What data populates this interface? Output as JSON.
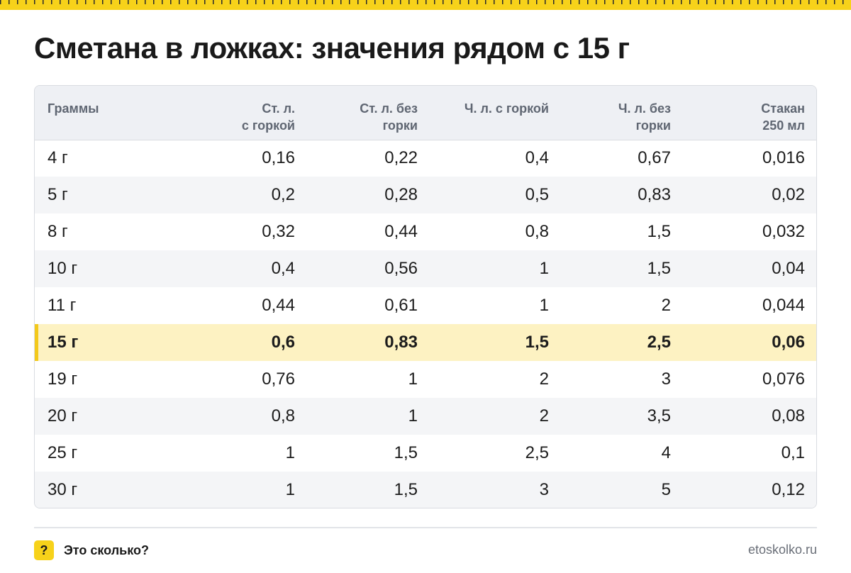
{
  "title": "Сметана в ложках: значения рядом с 15 г",
  "table": {
    "headers": [
      [
        "Граммы"
      ],
      [
        "Ст. л.",
        "с горкой"
      ],
      [
        "Ст. л. без",
        "горки"
      ],
      [
        "Ч. л. с горкой"
      ],
      [
        "Ч. л. без",
        "горки"
      ],
      [
        "Стакан",
        "250 мл"
      ]
    ],
    "highlight_row": 5,
    "rows": [
      [
        "4 г",
        "0,16",
        "0,22",
        "0,4",
        "0,67",
        "0,016"
      ],
      [
        "5 г",
        "0,2",
        "0,28",
        "0,5",
        "0,83",
        "0,02"
      ],
      [
        "8 г",
        "0,32",
        "0,44",
        "0,8",
        "1,5",
        "0,032"
      ],
      [
        "10 г",
        "0,4",
        "0,56",
        "1",
        "1,5",
        "0,04"
      ],
      [
        "11 г",
        "0,44",
        "0,61",
        "1",
        "2",
        "0,044"
      ],
      [
        "15 г",
        "0,6",
        "0,83",
        "1,5",
        "2,5",
        "0,06"
      ],
      [
        "19 г",
        "0,76",
        "1",
        "2",
        "3",
        "0,076"
      ],
      [
        "20 г",
        "0,8",
        "1",
        "2",
        "3,5",
        "0,08"
      ],
      [
        "25 г",
        "1",
        "1,5",
        "2,5",
        "4",
        "0,1"
      ],
      [
        "30 г",
        "1",
        "1,5",
        "3",
        "5",
        "0,12"
      ]
    ]
  },
  "footer": {
    "badge": "?",
    "brand": "Это сколько?",
    "site": "etoskolko.ru"
  },
  "colors": {
    "accent": "#f7d21a",
    "highlight_row": "#fdf2c2",
    "header_bg": "#eef0f4"
  }
}
